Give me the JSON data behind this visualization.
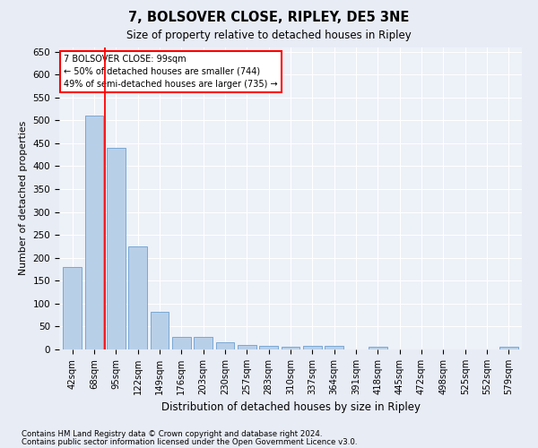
{
  "title": "7, BOLSOVER CLOSE, RIPLEY, DE5 3NE",
  "subtitle": "Size of property relative to detached houses in Ripley",
  "xlabel": "Distribution of detached houses by size in Ripley",
  "ylabel": "Number of detached properties",
  "categories": [
    "42sqm",
    "68sqm",
    "95sqm",
    "122sqm",
    "149sqm",
    "176sqm",
    "203sqm",
    "230sqm",
    "257sqm",
    "283sqm",
    "310sqm",
    "337sqm",
    "364sqm",
    "391sqm",
    "418sqm",
    "445sqm",
    "472sqm",
    "498sqm",
    "525sqm",
    "552sqm",
    "579sqm"
  ],
  "values": [
    180,
    510,
    440,
    225,
    83,
    28,
    28,
    15,
    10,
    8,
    6,
    7,
    8,
    0,
    5,
    0,
    0,
    0,
    0,
    0,
    5
  ],
  "bar_color": "#b8cfe8",
  "bar_edge_color": "#6a9fd0",
  "red_line_x": 1.5,
  "annotation_line1": "7 BOLSOVER CLOSE: 99sqm",
  "annotation_line2": "← 50% of detached houses are smaller (744)",
  "annotation_line3": "49% of semi-detached houses are larger (735) →",
  "ylim": [
    0,
    660
  ],
  "yticks": [
    0,
    50,
    100,
    150,
    200,
    250,
    300,
    350,
    400,
    450,
    500,
    550,
    600,
    650
  ],
  "footer1": "Contains HM Land Registry data © Crown copyright and database right 2024.",
  "footer2": "Contains public sector information licensed under the Open Government Licence v3.0.",
  "bg_color": "#e8ecf5",
  "plot_bg_color": "#edf1f8"
}
